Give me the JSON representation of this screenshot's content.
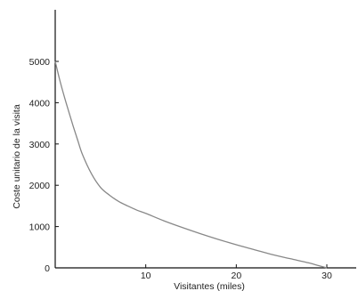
{
  "chart_data": {
    "type": "line",
    "title": "",
    "xlabel": "Visitantes (miles)",
    "ylabel": "Coste unitario de la visita",
    "xlim": [
      0,
      32
    ],
    "ylim": [
      0,
      6200
    ],
    "x_ticks": [
      10,
      20,
      30
    ],
    "y_ticks": [
      0,
      1000,
      2000,
      3000,
      4000,
      5000
    ],
    "x_tick_labels": [
      "10",
      "20",
      "30"
    ],
    "y_tick_labels": [
      "0",
      "1000",
      "2000",
      "3000",
      "4000",
      "5000"
    ],
    "grid": false,
    "legend": "none",
    "line_color": "#888888",
    "series": [
      {
        "x": [
          0,
          0.5,
          1,
          1.5,
          2,
          2.5,
          3,
          4,
          5,
          6,
          7,
          8,
          9,
          10,
          12,
          14,
          16,
          18,
          20,
          22,
          24,
          26,
          28,
          29,
          30
        ],
        "values": [
          5000,
          4550,
          4150,
          3780,
          3420,
          3080,
          2750,
          2280,
          1950,
          1760,
          1610,
          1500,
          1400,
          1320,
          1140,
          980,
          830,
          690,
          560,
          440,
          320,
          220,
          120,
          60,
          0
        ]
      }
    ]
  }
}
